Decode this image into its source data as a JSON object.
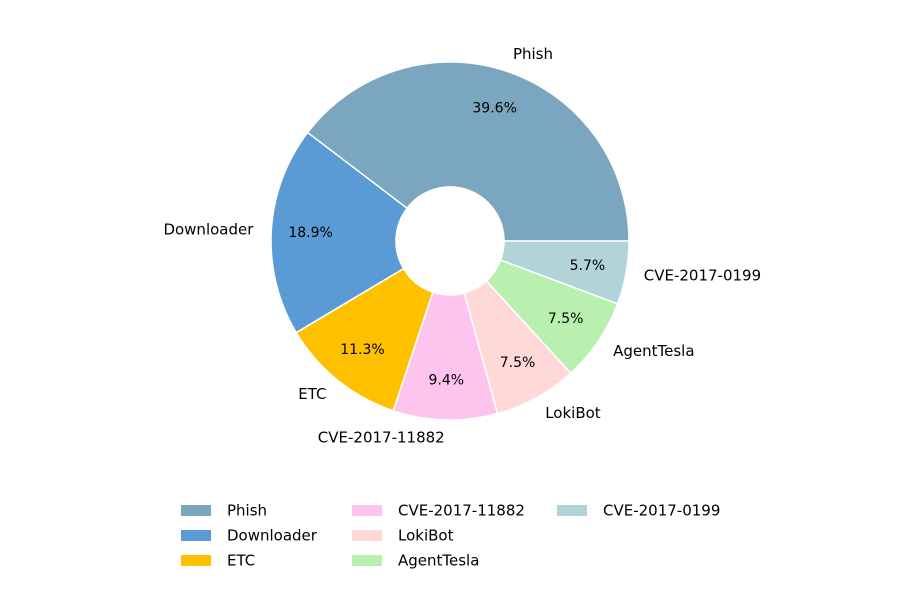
{
  "chart_data": {
    "type": "pie",
    "donut": true,
    "title": "",
    "categories": [
      "Phish",
      "Downloader",
      "ETC",
      "CVE-2017-11882",
      "LokiBot",
      "AgentTesla",
      "CVE-2017-0199"
    ],
    "values": [
      39.6,
      18.9,
      11.3,
      9.4,
      7.5,
      7.5,
      5.7
    ],
    "value_labels": [
      "39.6%",
      "18.9%",
      "11.3%",
      "9.4%",
      "7.5%",
      "7.5%",
      "5.7%"
    ],
    "colors": [
      "#7AA6BF",
      "#5B9BD5",
      "#FFC000",
      "#FFC4EE",
      "#FFD8D8",
      "#B9F0B0",
      "#B2D3D8"
    ],
    "start_angle_deg": 0,
    "direction": "counterclockwise",
    "legend": {
      "placement": "bottom-center",
      "columns": 3,
      "entries": [
        "Phish",
        "Downloader",
        "ETC",
        "CVE-2017-11882",
        "LokiBot",
        "AgentTesla",
        "CVE-2017-0199"
      ]
    }
  }
}
